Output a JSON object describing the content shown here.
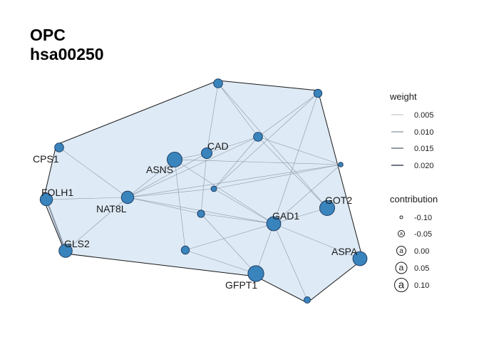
{
  "title": [
    "OPC",
    "hsa00250"
  ],
  "colors": {
    "node_fill": "#3a84bd",
    "node_stroke": "#1f3f66",
    "edge": "#8c98a8",
    "hull_fill": "#deeaf5",
    "hull_stroke": "#1a1a1a"
  },
  "nodes": [
    {
      "id": "n1",
      "label": "",
      "contribution": -0.02
    },
    {
      "id": "n2",
      "label": "",
      "contribution": -0.03
    },
    {
      "id": "n3",
      "label": "CPS1",
      "contribution": -0.02
    },
    {
      "id": "n4",
      "label": "",
      "contribution": -0.02
    },
    {
      "id": "n5",
      "label": "CAD",
      "contribution": 0.0
    },
    {
      "id": "n6",
      "label": "ASNS",
      "contribution": 0.05
    },
    {
      "id": "n7",
      "label": "",
      "contribution": -0.07
    },
    {
      "id": "n8",
      "label": "FOLH1",
      "contribution": 0.02
    },
    {
      "id": "n9",
      "label": "NAT8L",
      "contribution": 0.02
    },
    {
      "id": "n10",
      "label": "",
      "contribution": -0.06
    },
    {
      "id": "n11",
      "label": "GOT2",
      "contribution": 0.05
    },
    {
      "id": "n12",
      "label": "",
      "contribution": -0.04
    },
    {
      "id": "n13",
      "label": "GAD1",
      "contribution": 0.04
    },
    {
      "id": "n14",
      "label": "GLS2",
      "contribution": 0.03
    },
    {
      "id": "n15",
      "label": "",
      "contribution": -0.03
    },
    {
      "id": "n16",
      "label": "ASPA",
      "contribution": 0.04
    },
    {
      "id": "n17",
      "label": "GFPT1",
      "contribution": 0.06
    },
    {
      "id": "n18",
      "label": "",
      "contribution": -0.05
    }
  ],
  "edges": [
    {
      "source": "n1",
      "target": "n5",
      "weight": 0.005
    },
    {
      "source": "n1",
      "target": "n4",
      "weight": 0.005
    },
    {
      "source": "n1",
      "target": "n11",
      "weight": 0.005
    },
    {
      "source": "n2",
      "target": "n10",
      "weight": 0.005
    },
    {
      "source": "n2",
      "target": "n4",
      "weight": 0.005
    },
    {
      "source": "n2",
      "target": "n13",
      "weight": 0.005
    },
    {
      "source": "n3",
      "target": "n9",
      "weight": 0.005
    },
    {
      "source": "n4",
      "target": "n5",
      "weight": 0.005
    },
    {
      "source": "n4",
      "target": "n10",
      "weight": 0.005
    },
    {
      "source": "n4",
      "target": "n7",
      "weight": 0.005
    },
    {
      "source": "n4",
      "target": "n11",
      "weight": 0.005
    },
    {
      "source": "n4",
      "target": "n9",
      "weight": 0.005
    },
    {
      "source": "n5",
      "target": "n9",
      "weight": 0.005
    },
    {
      "source": "n5",
      "target": "n6",
      "weight": 0.005
    },
    {
      "source": "n5",
      "target": "n12",
      "weight": 0.005
    },
    {
      "source": "n6",
      "target": "n7",
      "weight": 0.005
    },
    {
      "source": "n6",
      "target": "n13",
      "weight": 0.005
    },
    {
      "source": "n6",
      "target": "n15",
      "weight": 0.005
    },
    {
      "source": "n6",
      "target": "n9",
      "weight": 0.005
    },
    {
      "source": "n7",
      "target": "n10",
      "weight": 0.005
    },
    {
      "source": "n7",
      "target": "n9",
      "weight": 0.005
    },
    {
      "source": "n7",
      "target": "n13",
      "weight": 0.005
    },
    {
      "source": "n8",
      "target": "n9",
      "weight": 0.005
    },
    {
      "source": "n8",
      "target": "n14",
      "weight": 0.02
    },
    {
      "source": "n9",
      "target": "n10",
      "weight": 0.005
    },
    {
      "source": "n9",
      "target": "n13",
      "weight": 0.005
    },
    {
      "source": "n9",
      "target": "n12",
      "weight": 0.005
    },
    {
      "source": "n9",
      "target": "n14",
      "weight": 0.005
    },
    {
      "source": "n10",
      "target": "n13",
      "weight": 0.005
    },
    {
      "source": "n12",
      "target": "n13",
      "weight": 0.005
    },
    {
      "source": "n12",
      "target": "n17",
      "weight": 0.005
    },
    {
      "source": "n13",
      "target": "n15",
      "weight": 0.005
    },
    {
      "source": "n13",
      "target": "n16",
      "weight": 0.005
    },
    {
      "source": "n13",
      "target": "n17",
      "weight": 0.005
    },
    {
      "source": "n13",
      "target": "n18",
      "weight": 0.005
    },
    {
      "source": "n11",
      "target": "n13",
      "weight": 0.005
    },
    {
      "source": "n15",
      "target": "n17",
      "weight": 0.005
    }
  ],
  "legend": {
    "weight": {
      "title": "weight",
      "items": [
        "0.005",
        "0.010",
        "0.015",
        "0.020"
      ]
    },
    "contribution": {
      "title": "contribution",
      "items": [
        "-0.10",
        "-0.05",
        "0.00",
        "0.05",
        "0.10"
      ],
      "glyph": "a"
    }
  }
}
